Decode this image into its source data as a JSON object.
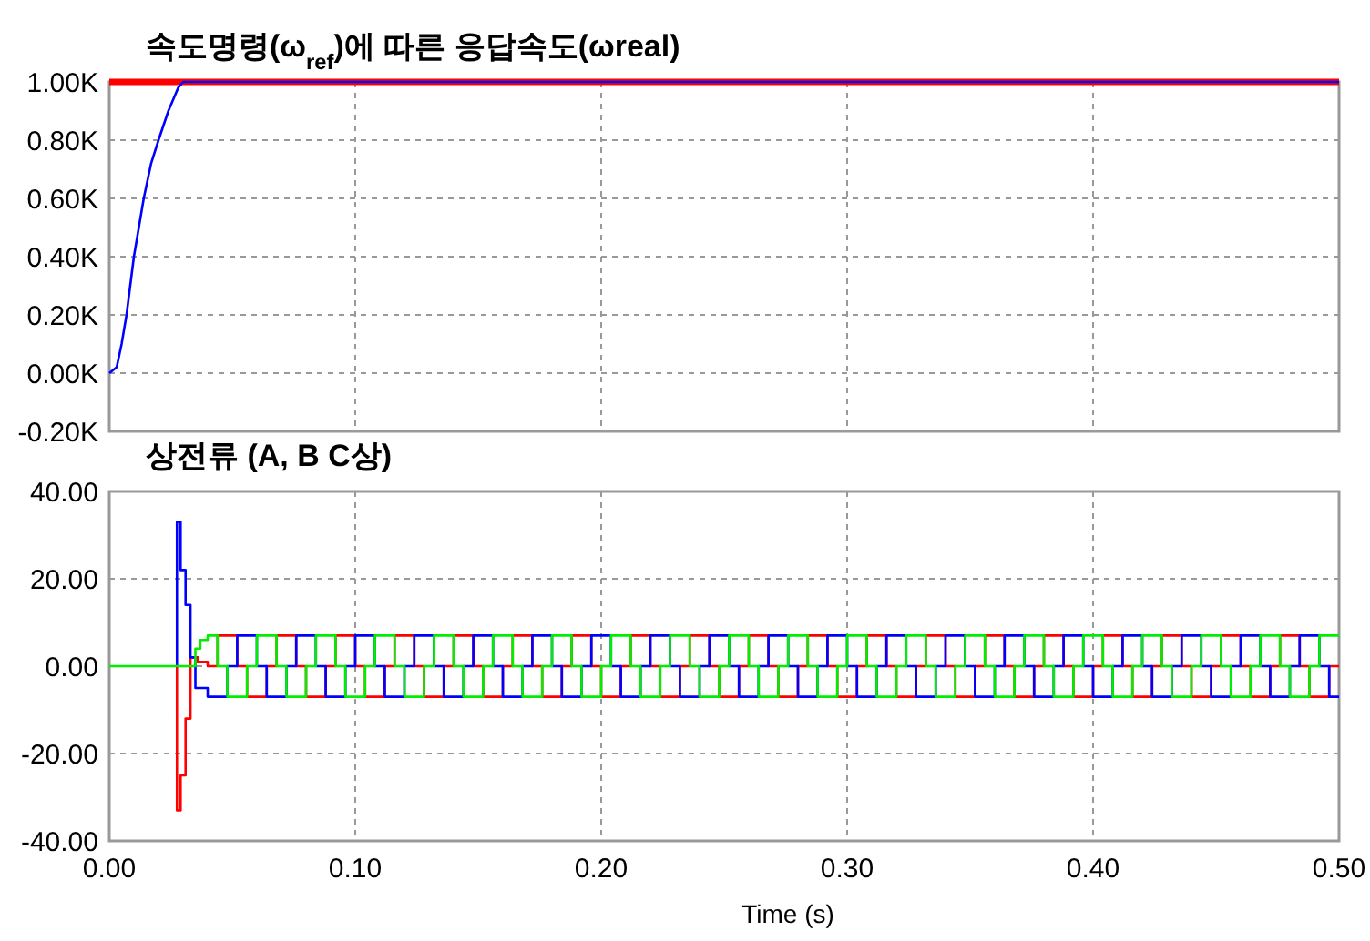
{
  "chart_data": [
    {
      "type": "line",
      "title": "속도명령(ω$_{ref}$)에 따른 응답속도(ωreal)",
      "xlim": [
        0,
        0.5
      ],
      "xticks": [
        0,
        0.1,
        0.2,
        0.3,
        0.4,
        0.5
      ],
      "ylim": [
        -200,
        1000
      ],
      "yticks": [
        {
          "value": -200,
          "label": "-0.20K"
        },
        {
          "value": 0,
          "label": "0.00K"
        },
        {
          "value": 200,
          "label": "0.20K"
        },
        {
          "value": 400,
          "label": "0.40K"
        },
        {
          "value": 600,
          "label": "0.60K"
        },
        {
          "value": 800,
          "label": "0.80K"
        },
        {
          "value": 1000,
          "label": "1.00K"
        }
      ],
      "grid": true,
      "tick_labels": "y",
      "series": [
        {
          "color": "#ff0000",
          "x": [
            0,
            0.5
          ],
          "values": [
            1000,
            1000
          ]
        },
        {
          "color": "#0000ff",
          "x": [
            0,
            0.003,
            0.005,
            0.007,
            0.01,
            0.014,
            0.017,
            0.02,
            0.024,
            0.028,
            0.03,
            0.035,
            0.5
          ],
          "values": [
            0,
            20,
            100,
            200,
            400,
            600,
            720,
            800,
            900,
            980,
            1000,
            1000,
            1000
          ]
        }
      ]
    },
    {
      "type": "step",
      "title": "상전류 (A, B C상)",
      "xlabel": "Time (s)",
      "xlim": [
        0,
        0.5
      ],
      "xticks": [
        {
          "value": 0,
          "label": "0.00"
        },
        {
          "value": 0.1,
          "label": "0.10"
        },
        {
          "value": 0.2,
          "label": "0.20"
        },
        {
          "value": 0.3,
          "label": "0.30"
        },
        {
          "value": 0.4,
          "label": "0.40"
        },
        {
          "value": 0.5,
          "label": "0.50"
        }
      ],
      "ylim": [
        -40,
        40
      ],
      "yticks": [
        {
          "value": -40,
          "label": "-40.00"
        },
        {
          "value": -20,
          "label": "-20.00"
        },
        {
          "value": 0,
          "label": "0.00"
        },
        {
          "value": 20,
          "label": "20.00"
        },
        {
          "value": 40,
          "label": "40.00"
        }
      ],
      "grid": true,
      "series": [
        {
          "color": "#00ee00",
          "x": [
            0,
            0.034,
            0.035,
            0.037,
            0.04,
            0.044,
            0.048,
            0.056,
            0.06,
            0.068,
            0.072,
            0.08,
            0.084,
            0.092,
            0.096,
            0.104,
            0.108,
            0.116,
            0.12,
            0.128,
            0.132,
            0.14,
            0.144,
            0.152,
            0.156,
            0.164,
            0.168,
            0.176,
            0.18,
            0.188,
            0.192,
            0.2,
            0.204,
            0.212,
            0.216,
            0.224,
            0.228,
            0.236,
            0.24,
            0.248,
            0.252,
            0.26,
            0.264,
            0.272,
            0.276,
            0.284,
            0.288,
            0.296,
            0.3,
            0.308,
            0.312,
            0.32,
            0.324,
            0.332,
            0.336,
            0.344,
            0.348,
            0.356,
            0.36,
            0.368,
            0.372,
            0.38,
            0.384,
            0.392,
            0.396,
            0.404,
            0.408,
            0.416,
            0.42,
            0.428,
            0.432,
            0.44,
            0.444,
            0.452,
            0.456,
            0.464,
            0.468,
            0.476,
            0.48,
            0.488,
            0.492,
            0.5
          ],
          "values": [
            0,
            0,
            4,
            6,
            7,
            0,
            -7,
            0,
            7,
            0,
            -7,
            0,
            7,
            0,
            -7,
            0,
            7,
            0,
            -7,
            0,
            7,
            0,
            -7,
            0,
            7,
            0,
            -7,
            0,
            7,
            0,
            -7,
            0,
            7,
            0,
            -7,
            0,
            7,
            0,
            -7,
            0,
            7,
            0,
            -7,
            0,
            7,
            0,
            -7,
            0,
            7,
            0,
            -7,
            0,
            7,
            0,
            -7,
            0,
            7,
            0,
            -7,
            0,
            7,
            0,
            -7,
            0,
            7,
            0,
            -7,
            0,
            7,
            0,
            -7,
            0,
            7,
            0,
            -7,
            0,
            7,
            0,
            -7,
            0,
            7,
            7
          ]
        },
        {
          "color": "#ff0000",
          "x": [
            0.027,
            0.0275,
            0.029,
            0.031,
            0.033,
            0.036,
            0.04,
            0.044,
            0.052,
            0.056,
            0.064,
            0.068,
            0.076,
            0.08,
            0.088,
            0.092,
            0.1,
            0.104,
            0.112,
            0.116,
            0.124,
            0.128,
            0.136,
            0.14,
            0.148,
            0.152,
            0.16,
            0.164,
            0.172,
            0.176,
            0.184,
            0.188,
            0.196,
            0.2,
            0.208,
            0.212,
            0.22,
            0.224,
            0.232,
            0.236,
            0.244,
            0.248,
            0.256,
            0.26,
            0.268,
            0.272,
            0.28,
            0.284,
            0.292,
            0.296,
            0.304,
            0.308,
            0.316,
            0.32,
            0.328,
            0.332,
            0.34,
            0.344,
            0.352,
            0.356,
            0.364,
            0.368,
            0.376,
            0.38,
            0.388,
            0.392,
            0.4,
            0.404,
            0.412,
            0.416,
            0.424,
            0.428,
            0.436,
            0.44,
            0.448,
            0.452,
            0.46,
            0.464,
            0.472,
            0.476,
            0.484,
            0.488,
            0.496,
            0.5
          ],
          "values": [
            0,
            -33,
            -25,
            -12,
            2,
            1,
            0,
            7,
            0,
            -7,
            0,
            7,
            0,
            -7,
            0,
            7,
            0,
            -7,
            0,
            7,
            0,
            -7,
            0,
            7,
            0,
            -7,
            0,
            7,
            0,
            -7,
            0,
            7,
            0,
            -7,
            0,
            7,
            0,
            -7,
            0,
            7,
            0,
            -7,
            0,
            7,
            0,
            -7,
            0,
            7,
            0,
            -7,
            0,
            7,
            0,
            -7,
            0,
            7,
            0,
            -7,
            0,
            7,
            0,
            -7,
            0,
            7,
            0,
            -7,
            0,
            7,
            0,
            -7,
            0,
            7,
            0,
            -7,
            0,
            7,
            0,
            -7,
            0,
            7,
            0,
            -7,
            0,
            0
          ]
        },
        {
          "color": "#0000ff",
          "x": [
            0.027,
            0.0275,
            0.029,
            0.031,
            0.033,
            0.035,
            0.04,
            0.048,
            0.052,
            0.06,
            0.064,
            0.072,
            0.076,
            0.084,
            0.088,
            0.096,
            0.1,
            0.108,
            0.112,
            0.12,
            0.124,
            0.132,
            0.136,
            0.144,
            0.148,
            0.156,
            0.16,
            0.168,
            0.172,
            0.18,
            0.184,
            0.192,
            0.196,
            0.204,
            0.208,
            0.216,
            0.22,
            0.228,
            0.232,
            0.24,
            0.244,
            0.252,
            0.256,
            0.264,
            0.268,
            0.276,
            0.28,
            0.288,
            0.292,
            0.3,
            0.304,
            0.312,
            0.316,
            0.324,
            0.328,
            0.336,
            0.34,
            0.348,
            0.352,
            0.36,
            0.364,
            0.372,
            0.376,
            0.384,
            0.388,
            0.396,
            0.4,
            0.408,
            0.412,
            0.42,
            0.424,
            0.432,
            0.436,
            0.444,
            0.448,
            0.456,
            0.46,
            0.468,
            0.472,
            0.48,
            0.484,
            0.492,
            0.496,
            0.5
          ],
          "values": [
            0,
            33,
            22,
            14,
            2,
            -5,
            -7,
            0,
            7,
            0,
            -7,
            0,
            7,
            0,
            -7,
            0,
            7,
            0,
            -7,
            0,
            7,
            0,
            -7,
            0,
            7,
            0,
            -7,
            0,
            7,
            0,
            -7,
            0,
            7,
            0,
            -7,
            0,
            7,
            0,
            -7,
            0,
            7,
            0,
            -7,
            0,
            7,
            0,
            -7,
            0,
            7,
            0,
            -7,
            0,
            7,
            0,
            -7,
            0,
            7,
            0,
            -7,
            0,
            7,
            0,
            -7,
            0,
            7,
            0,
            -7,
            0,
            7,
            0,
            -7,
            0,
            7,
            0,
            -7,
            0,
            7,
            0,
            -7,
            0,
            7,
            0,
            -7,
            -7
          ]
        }
      ]
    }
  ]
}
